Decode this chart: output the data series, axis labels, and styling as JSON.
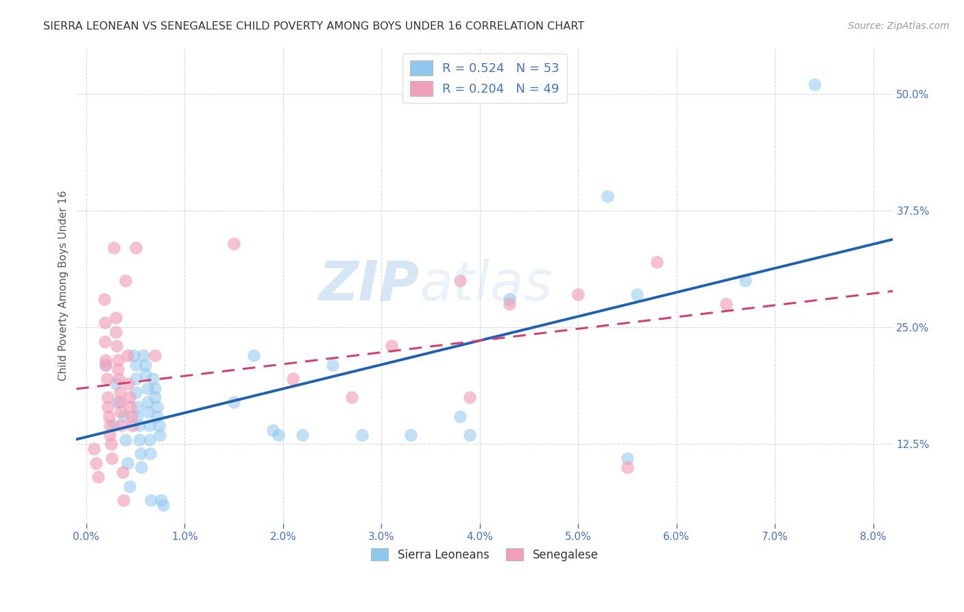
{
  "title": "SIERRA LEONEAN VS SENEGALESE CHILD POVERTY AMONG BOYS UNDER 16 CORRELATION CHART",
  "source": "Source: ZipAtlas.com",
  "ylabel": "Child Poverty Among Boys Under 16",
  "x_ticks": [
    0.0,
    0.01,
    0.02,
    0.03,
    0.04,
    0.05,
    0.06,
    0.07,
    0.08
  ],
  "x_tick_labels": [
    "0.0%",
    "1.0%",
    "2.0%",
    "3.0%",
    "4.0%",
    "5.0%",
    "6.0%",
    "7.0%",
    "8.0%"
  ],
  "y_ticks": [
    0.125,
    0.25,
    0.375,
    0.5
  ],
  "y_tick_labels": [
    "12.5%",
    "25.0%",
    "37.5%",
    "50.0%"
  ],
  "xlim": [
    -0.001,
    0.082
  ],
  "ylim": [
    0.04,
    0.55
  ],
  "legend1_label": "R = 0.524   N = 53",
  "legend2_label": "R = 0.204   N = 49",
  "legend_bottom1": "Sierra Leoneans",
  "legend_bottom2": "Senegalese",
  "blue_color": "#8FC8EE",
  "pink_color": "#F0A0B8",
  "blue_line_color": "#2060B0",
  "pink_line_color": "#D04070",
  "title_color": "#333333",
  "axis_label_color": "#555555",
  "tick_color": "#4472C4",
  "grid_color": "#CCCCCC",
  "watermark_zip": "ZIP",
  "watermark_atlas": "atlas",
  "sl_points": [
    [
      0.002,
      0.21
    ],
    [
      0.0028,
      0.145
    ],
    [
      0.003,
      0.19
    ],
    [
      0.0032,
      0.17
    ],
    [
      0.0038,
      0.155
    ],
    [
      0.004,
      0.13
    ],
    [
      0.0042,
      0.105
    ],
    [
      0.0044,
      0.08
    ],
    [
      0.0048,
      0.22
    ],
    [
      0.005,
      0.21
    ],
    [
      0.005,
      0.195
    ],
    [
      0.005,
      0.18
    ],
    [
      0.0052,
      0.165
    ],
    [
      0.0052,
      0.155
    ],
    [
      0.0054,
      0.145
    ],
    [
      0.0054,
      0.13
    ],
    [
      0.0055,
      0.115
    ],
    [
      0.0056,
      0.1
    ],
    [
      0.0058,
      0.22
    ],
    [
      0.006,
      0.21
    ],
    [
      0.006,
      0.2
    ],
    [
      0.0062,
      0.185
    ],
    [
      0.0062,
      0.17
    ],
    [
      0.0063,
      0.16
    ],
    [
      0.0064,
      0.145
    ],
    [
      0.0064,
      0.13
    ],
    [
      0.0065,
      0.115
    ],
    [
      0.0066,
      0.065
    ],
    [
      0.0068,
      0.195
    ],
    [
      0.007,
      0.185
    ],
    [
      0.007,
      0.175
    ],
    [
      0.0072,
      0.165
    ],
    [
      0.0072,
      0.155
    ],
    [
      0.0074,
      0.145
    ],
    [
      0.0075,
      0.135
    ],
    [
      0.0076,
      0.065
    ],
    [
      0.0078,
      0.06
    ],
    [
      0.015,
      0.17
    ],
    [
      0.017,
      0.22
    ],
    [
      0.019,
      0.14
    ],
    [
      0.0195,
      0.135
    ],
    [
      0.022,
      0.135
    ],
    [
      0.025,
      0.21
    ],
    [
      0.028,
      0.135
    ],
    [
      0.033,
      0.135
    ],
    [
      0.038,
      0.155
    ],
    [
      0.039,
      0.135
    ],
    [
      0.043,
      0.28
    ],
    [
      0.053,
      0.39
    ],
    [
      0.055,
      0.11
    ],
    [
      0.056,
      0.285
    ],
    [
      0.067,
      0.3
    ],
    [
      0.074,
      0.51
    ]
  ],
  "sn_points": [
    [
      0.0008,
      0.12
    ],
    [
      0.001,
      0.105
    ],
    [
      0.0012,
      0.09
    ],
    [
      0.0018,
      0.28
    ],
    [
      0.0019,
      0.255
    ],
    [
      0.0019,
      0.235
    ],
    [
      0.002,
      0.215
    ],
    [
      0.002,
      0.21
    ],
    [
      0.0021,
      0.195
    ],
    [
      0.0022,
      0.175
    ],
    [
      0.0022,
      0.165
    ],
    [
      0.0023,
      0.155
    ],
    [
      0.0024,
      0.145
    ],
    [
      0.0024,
      0.135
    ],
    [
      0.0025,
      0.125
    ],
    [
      0.0026,
      0.11
    ],
    [
      0.0028,
      0.335
    ],
    [
      0.003,
      0.26
    ],
    [
      0.003,
      0.245
    ],
    [
      0.0031,
      0.23
    ],
    [
      0.0032,
      0.215
    ],
    [
      0.0032,
      0.205
    ],
    [
      0.0033,
      0.195
    ],
    [
      0.0034,
      0.18
    ],
    [
      0.0034,
      0.17
    ],
    [
      0.0035,
      0.16
    ],
    [
      0.0036,
      0.145
    ],
    [
      0.0037,
      0.095
    ],
    [
      0.0038,
      0.065
    ],
    [
      0.004,
      0.3
    ],
    [
      0.0042,
      0.22
    ],
    [
      0.0043,
      0.19
    ],
    [
      0.0044,
      0.175
    ],
    [
      0.0045,
      0.165
    ],
    [
      0.0046,
      0.155
    ],
    [
      0.0047,
      0.145
    ],
    [
      0.005,
      0.335
    ],
    [
      0.007,
      0.22
    ],
    [
      0.015,
      0.34
    ],
    [
      0.021,
      0.195
    ],
    [
      0.027,
      0.175
    ],
    [
      0.031,
      0.23
    ],
    [
      0.038,
      0.3
    ],
    [
      0.039,
      0.175
    ],
    [
      0.043,
      0.275
    ],
    [
      0.05,
      0.285
    ],
    [
      0.055,
      0.1
    ],
    [
      0.058,
      0.32
    ],
    [
      0.065,
      0.275
    ]
  ]
}
